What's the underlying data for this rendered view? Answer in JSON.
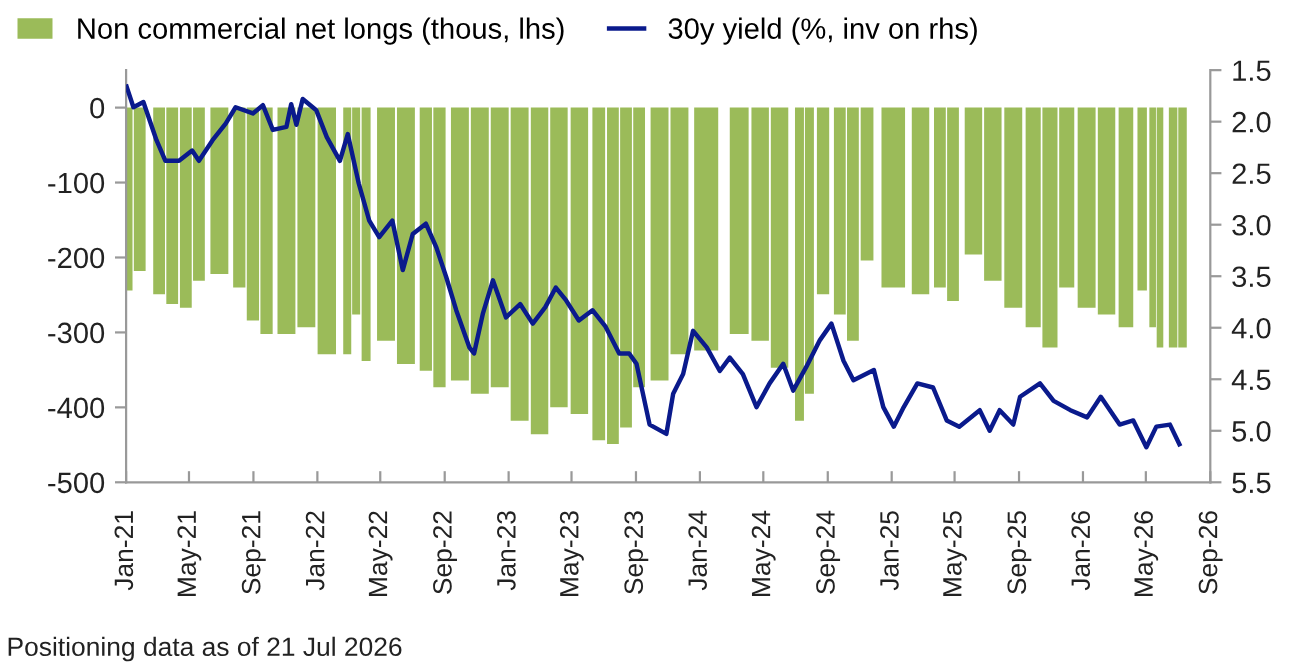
{
  "chart_data": {
    "type": "bar",
    "legend": "top",
    "annotations": [
      "Positioning data as of 21 Jul 2026"
    ],
    "xlim": [
      "2021-01-01",
      "2026-09-01"
    ],
    "xticks": [
      {
        "value": "2021-01-01",
        "label": "Jan-21"
      },
      {
        "value": "2021-05-01",
        "label": "May-21"
      },
      {
        "value": "2021-09-01",
        "label": "Sep-21"
      },
      {
        "value": "2022-01-01",
        "label": "Jan-22"
      },
      {
        "value": "2022-05-01",
        "label": "May-22"
      },
      {
        "value": "2022-09-01",
        "label": "Sep-22"
      },
      {
        "value": "2023-01-01",
        "label": "Jan-23"
      },
      {
        "value": "2023-05-01",
        "label": "May-23"
      },
      {
        "value": "2023-09-01",
        "label": "Sep-23"
      },
      {
        "value": "2024-01-01",
        "label": "Jan-24"
      },
      {
        "value": "2024-05-01",
        "label": "May-24"
      },
      {
        "value": "2024-09-01",
        "label": "Sep-24"
      },
      {
        "value": "2025-01-01",
        "label": "Jan-25"
      },
      {
        "value": "2025-05-01",
        "label": "May-25"
      },
      {
        "value": "2025-09-01",
        "label": "Sep-25"
      },
      {
        "value": "2026-01-01",
        "label": "Jan-26"
      },
      {
        "value": "2026-05-01",
        "label": "May-26"
      },
      {
        "value": "2026-09-01",
        "label": "Sep-26"
      }
    ],
    "ylim": [
      -500,
      50
    ],
    "yticks": [
      -500,
      -400,
      -300,
      -200,
      -100,
      0
    ],
    "y2lim": [
      5.5,
      1.5
    ],
    "y2ticks": [
      {
        "value": 5.5,
        "label": "5.5"
      },
      {
        "value": 5.0,
        "label": "5.0"
      },
      {
        "value": 4.5,
        "label": "4.5"
      },
      {
        "value": 4.0,
        "label": "4.0"
      },
      {
        "value": 3.5,
        "label": "3.5"
      },
      {
        "value": 3.0,
        "label": "3.0"
      },
      {
        "value": 2.5,
        "label": "2.5"
      },
      {
        "value": 2.0,
        "label": "2.0"
      },
      {
        "value": 1.5,
        "label": "1.5"
      }
    ],
    "series": [
      {
        "name": "Non commercial net longs (thous, lhs)",
        "color": "#9bbb59",
        "x": [
          "2021-01-02",
          "2021-01-27",
          "2021-03-05",
          "2021-03-30",
          "2021-04-25",
          "2021-05-20",
          "2021-06-28",
          "2021-08-05",
          "2021-08-31",
          "2021-09-26",
          "2021-11-03",
          "2021-12-11",
          "2022-01-19",
          "2022-02-27",
          "2022-03-16",
          "2022-04-04",
          "2022-05-12",
          "2022-06-19",
          "2022-07-27",
          "2022-08-22",
          "2022-09-30",
          "2022-11-07",
          "2022-12-15",
          "2023-01-22",
          "2023-03-01",
          "2023-04-07",
          "2023-05-16",
          "2023-06-22",
          "2023-07-19",
          "2023-08-13",
          "2023-09-07",
          "2023-10-16",
          "2023-11-23",
          "2024-01-13",
          "2024-03-16",
          "2024-04-25",
          "2024-06-01",
          "2024-07-09",
          "2024-07-28",
          "2024-08-23",
          "2024-09-24",
          "2024-10-19",
          "2024-11-15",
          "2025-01-04",
          "2025-02-25",
          "2025-04-03",
          "2025-04-28",
          "2025-06-06",
          "2025-07-13",
          "2025-08-21",
          "2025-09-28",
          "2025-10-30",
          "2025-12-01",
          "2026-01-08",
          "2026-02-15",
          "2026-03-24",
          "2026-04-24",
          "2026-05-14",
          "2026-05-28",
          "2026-06-22",
          "2026-07-10"
        ],
        "values": [
          -244,
          -218,
          -249,
          -262,
          -267,
          -231,
          -222,
          -240,
          -284,
          -302,
          -302,
          -293,
          -329,
          -329,
          -276,
          -338,
          -311,
          -342,
          -351,
          -373,
          -364,
          -382,
          -373,
          -418,
          -436,
          -400,
          -409,
          -444,
          -449,
          -427,
          -373,
          -364,
          -329,
          -324,
          -302,
          -311,
          -347,
          -418,
          -382,
          -249,
          -276,
          -311,
          -204,
          -240,
          -249,
          -240,
          -258,
          -196,
          -231,
          -267,
          -293,
          -320,
          -240,
          -267,
          -276,
          -293,
          -244,
          -293,
          -320,
          -320,
          -320
        ]
      },
      {
        "name": "30y yield (%, inv on rhs)",
        "type": "line",
        "axis": "y2",
        "color": "#0a1a8c",
        "line_style": "solid",
        "x": [
          "2021-01-02",
          "2021-01-15",
          "2021-02-03",
          "2021-02-28",
          "2021-03-17",
          "2021-04-12",
          "2021-05-07",
          "2021-05-20",
          "2021-06-15",
          "2021-07-10",
          "2021-07-29",
          "2021-08-31",
          "2021-09-19",
          "2021-10-08",
          "2021-11-03",
          "2021-11-12",
          "2021-11-22",
          "2021-12-04",
          "2021-12-30",
          "2022-01-19",
          "2022-02-13",
          "2022-02-28",
          "2022-03-21",
          "2022-04-10",
          "2022-04-29",
          "2022-05-24",
          "2022-06-13",
          "2022-07-02",
          "2022-07-27",
          "2022-08-16",
          "2022-09-04",
          "2022-09-23",
          "2022-10-18",
          "2022-10-27",
          "2022-11-13",
          "2022-12-02",
          "2022-12-27",
          "2023-01-23",
          "2023-02-16",
          "2023-03-12",
          "2023-04-01",
          "2023-04-20",
          "2023-05-15",
          "2023-06-10",
          "2023-07-05",
          "2023-07-31",
          "2023-08-19",
          "2023-09-02",
          "2023-09-27",
          "2023-10-29",
          "2023-11-11",
          "2023-11-30",
          "2023-12-19",
          "2024-01-14",
          "2024-02-08",
          "2024-02-27",
          "2024-03-23",
          "2024-04-18",
          "2024-05-13",
          "2024-06-08",
          "2024-06-27",
          "2024-07-22",
          "2024-08-17",
          "2024-09-08",
          "2024-10-01",
          "2024-10-20",
          "2024-11-28",
          "2024-12-16",
          "2025-01-05",
          "2025-01-24",
          "2025-02-19",
          "2025-03-21",
          "2025-04-16",
          "2025-05-10",
          "2025-06-18",
          "2025-07-07",
          "2025-07-26",
          "2025-08-21",
          "2025-09-03",
          "2025-10-11",
          "2025-11-06",
          "2025-12-08",
          "2026-01-09",
          "2026-02-04",
          "2026-03-12",
          "2026-04-07",
          "2026-05-02",
          "2026-05-21",
          "2026-06-16",
          "2026-07-04"
        ],
        "values": [
          1.66,
          1.86,
          1.81,
          2.18,
          2.38,
          2.38,
          2.28,
          2.38,
          2.18,
          2.02,
          1.86,
          1.92,
          1.84,
          2.08,
          2.05,
          1.83,
          2.03,
          1.78,
          1.89,
          2.15,
          2.38,
          2.12,
          2.6,
          2.96,
          3.12,
          2.96,
          3.44,
          3.09,
          2.99,
          3.22,
          3.51,
          3.83,
          4.19,
          4.25,
          3.86,
          3.54,
          3.9,
          3.77,
          3.96,
          3.8,
          3.61,
          3.73,
          3.93,
          3.83,
          3.99,
          4.25,
          4.25,
          4.35,
          4.94,
          5.03,
          4.64,
          4.45,
          4.03,
          4.19,
          4.42,
          4.29,
          4.45,
          4.77,
          4.54,
          4.35,
          4.61,
          4.38,
          4.12,
          3.96,
          4.32,
          4.51,
          4.41,
          4.77,
          4.96,
          4.77,
          4.54,
          4.58,
          4.9,
          4.96,
          4.8,
          5.0,
          4.8,
          4.94,
          4.67,
          4.54,
          4.71,
          4.8,
          4.87,
          4.67,
          4.94,
          4.9,
          5.16,
          4.96,
          4.94,
          5.13
        ]
      }
    ]
  }
}
